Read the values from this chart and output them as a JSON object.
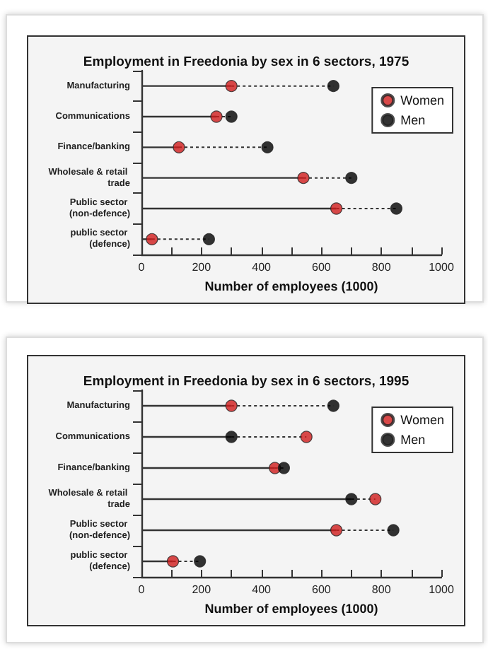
{
  "chart_data": [
    {
      "type": "lollipop",
      "title": "Employment in Freedonia by sex in 6 sectors, 1975",
      "xlabel": "Number of employees (1000)",
      "orientation": "horizontal",
      "categories": [
        "Manufacturing",
        "Communications",
        "Finance/banking",
        "Wholesale & retail trade",
        "Public sector (non-defence)",
        "public sector (defence)"
      ],
      "series": [
        {
          "name": "Women",
          "color": "#d01c1c",
          "values": [
            300,
            250,
            125,
            540,
            650,
            35
          ]
        },
        {
          "name": "Men",
          "color": "#000000",
          "values": [
            640,
            300,
            420,
            700,
            850,
            225
          ]
        }
      ],
      "xlim": [
        0,
        1000
      ],
      "xticks": [
        0,
        {
          "value": 100,
          "label": null
        },
        200,
        {
          "value": 300,
          "label": null
        },
        400,
        {
          "value": 500,
          "label": null
        },
        600,
        {
          "value": 700,
          "label": null
        },
        800,
        {
          "value": 900,
          "label": null
        },
        1000
      ],
      "grid": false,
      "legend": "top right",
      "marker": "circle"
    },
    {
      "type": "lollipop",
      "title": "Employment in Freedonia by sex in 6 sectors, 1995",
      "xlabel": "Number of employees (1000)",
      "orientation": "horizontal",
      "categories": [
        "Manufacturing",
        "Communications",
        "Finance/banking",
        "Wholesale & retail trade",
        "Public sector (non-defence)",
        "public sector (defence)"
      ],
      "series": [
        {
          "name": "Women",
          "color": "#d01c1c",
          "values": [
            300,
            550,
            445,
            780,
            650,
            105
          ]
        },
        {
          "name": "Men",
          "color": "#000000",
          "values": [
            640,
            300,
            475,
            700,
            840,
            195
          ]
        }
      ],
      "xlim": [
        0,
        1000
      ],
      "xticks": [
        0,
        {
          "value": 100,
          "label": null
        },
        200,
        {
          "value": 300,
          "label": null
        },
        400,
        {
          "value": 500,
          "label": null
        },
        600,
        {
          "value": 700,
          "label": null
        },
        800,
        {
          "value": 900,
          "label": null
        },
        1000
      ],
      "grid": false,
      "legend": "top right",
      "marker": "circle"
    }
  ]
}
